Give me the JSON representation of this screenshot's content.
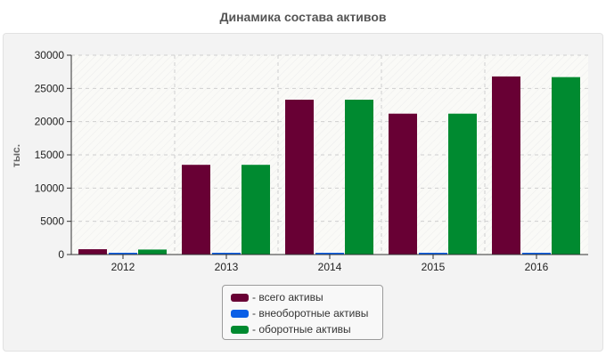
{
  "chart_data": {
    "type": "bar",
    "title": "Динамика состава активов",
    "xlabel": "",
    "ylabel": "тыс.",
    "categories": [
      "2012",
      "2013",
      "2014",
      "2015",
      "2016"
    ],
    "ylim": [
      0,
      30000
    ],
    "yticks": [
      0,
      5000,
      10000,
      15000,
      20000,
      25000,
      30000
    ],
    "grid": true,
    "legend_position": "bottom",
    "series": [
      {
        "name": "- всего активы",
        "color": "#680034",
        "values": [
          800,
          13500,
          23300,
          21200,
          26800
        ]
      },
      {
        "name": "- внеоборотные активы",
        "color": "#0a5fe6",
        "values": [
          100,
          100,
          100,
          100,
          150
        ]
      },
      {
        "name": "- оборотные активы",
        "color": "#008a30",
        "values": [
          750,
          13500,
          23300,
          21200,
          26700
        ]
      }
    ]
  }
}
